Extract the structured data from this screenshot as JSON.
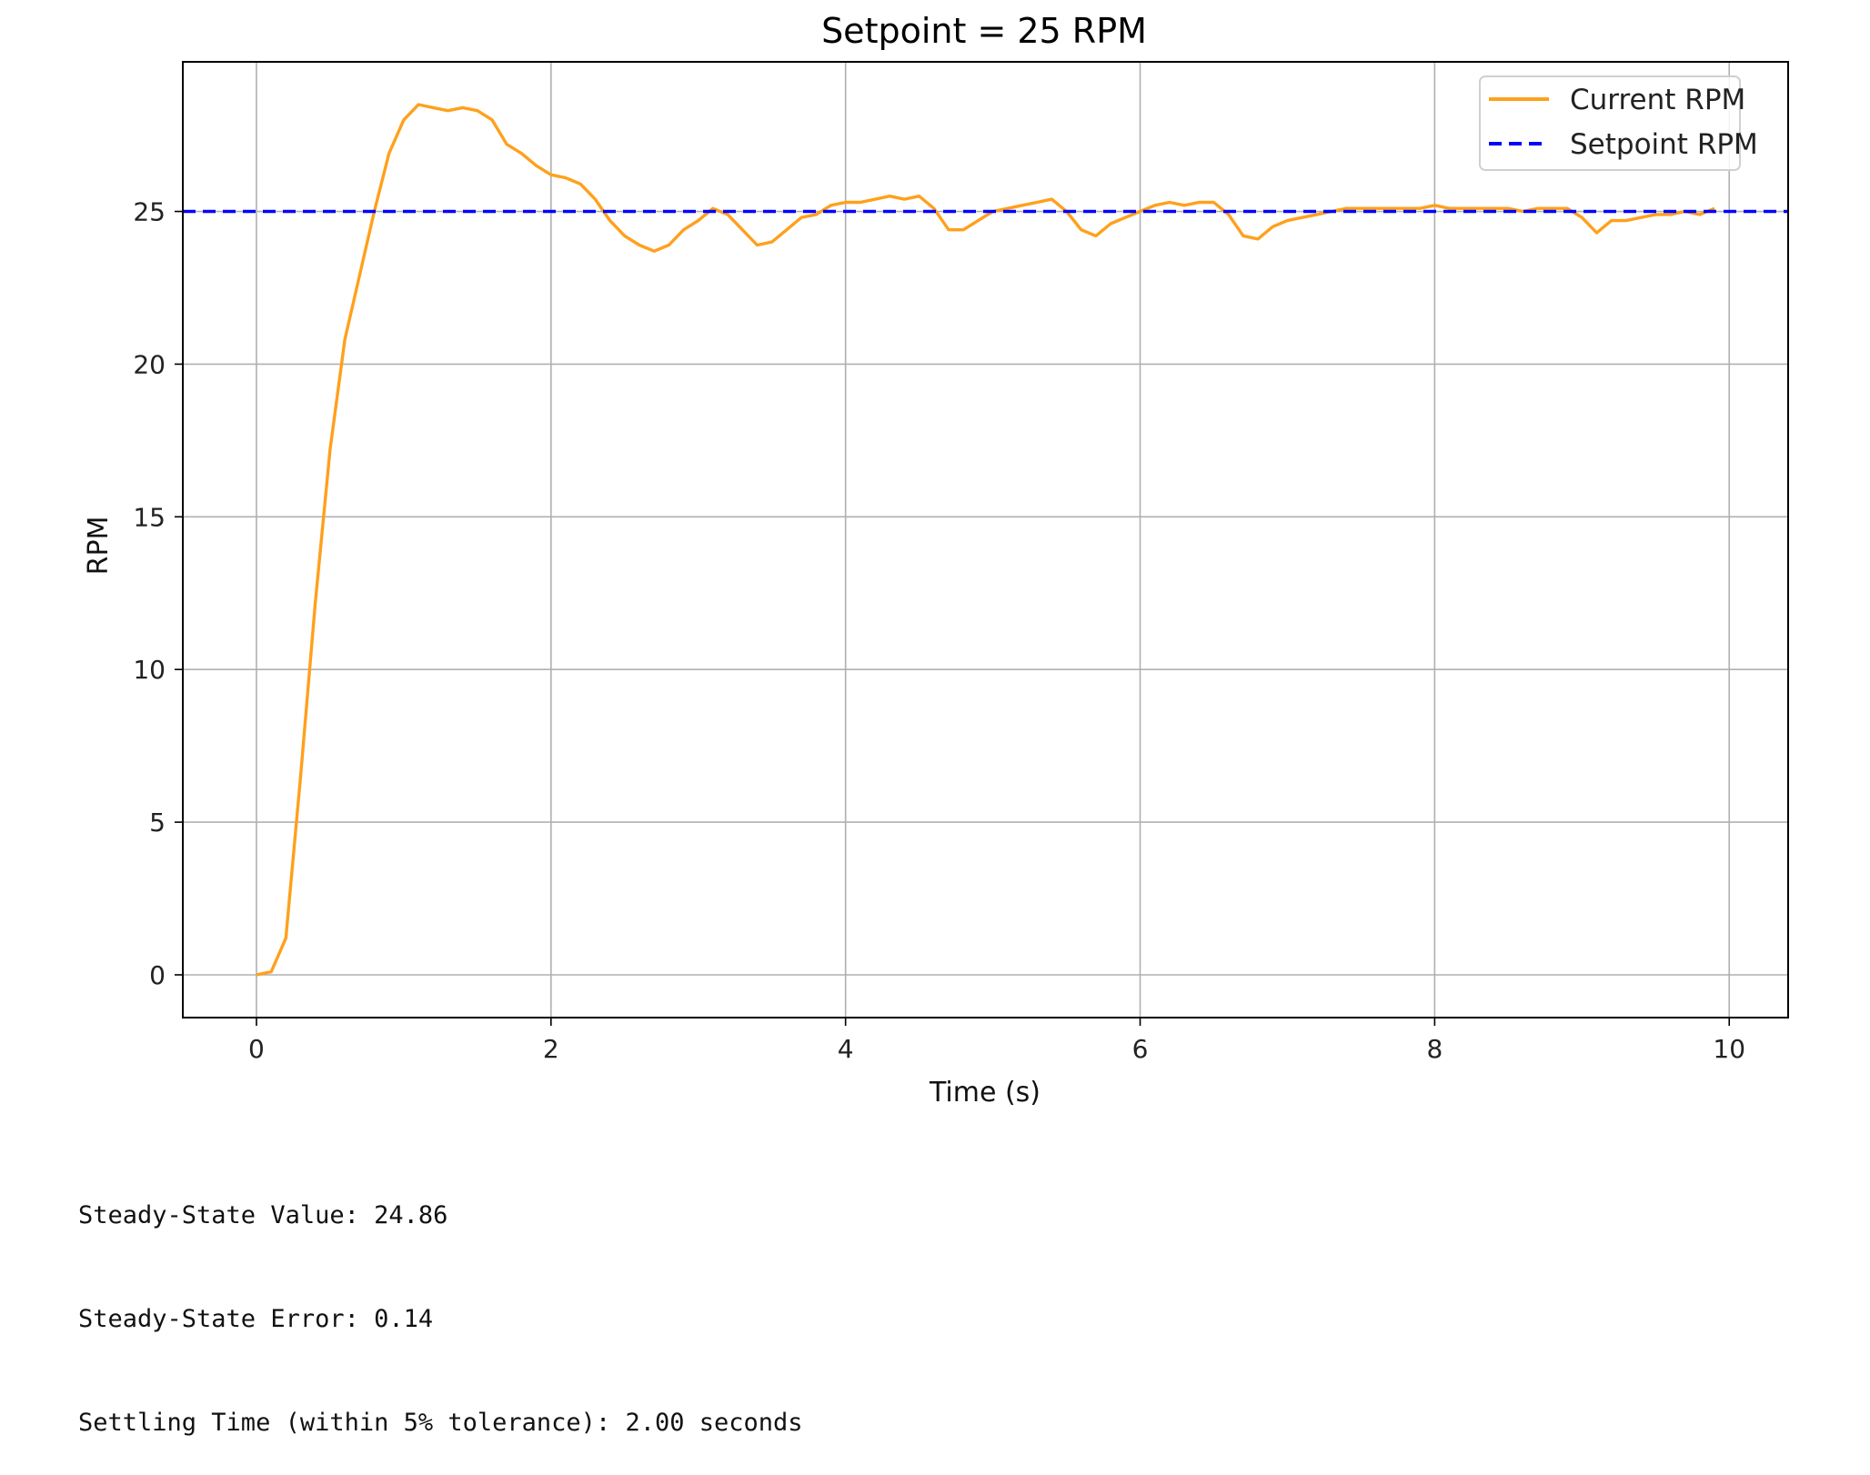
{
  "chart_data": {
    "type": "line",
    "title": "Setpoint = 25 RPM",
    "xlabel": "Time (s)",
    "ylabel": "RPM",
    "xlim": [
      -0.5,
      10.4
    ],
    "ylim": [
      -1.4,
      29.9
    ],
    "xticks": [
      0,
      2,
      4,
      6,
      8,
      10
    ],
    "yticks": [
      0,
      5,
      10,
      15,
      20,
      25
    ],
    "grid": true,
    "legend_position": "top-right",
    "series": [
      {
        "name": "Current RPM",
        "style": "solid",
        "color": "#FFA01C",
        "x": [
          0.0,
          0.1,
          0.2,
          0.3,
          0.4,
          0.5,
          0.6,
          0.7,
          0.8,
          0.9,
          1.0,
          1.1,
          1.2,
          1.3,
          1.4,
          1.5,
          1.6,
          1.7,
          1.8,
          1.9,
          2.0,
          2.1,
          2.2,
          2.3,
          2.4,
          2.5,
          2.6,
          2.7,
          2.8,
          2.9,
          3.0,
          3.1,
          3.2,
          3.3,
          3.4,
          3.5,
          3.6,
          3.7,
          3.8,
          3.9,
          4.0,
          4.1,
          4.2,
          4.3,
          4.4,
          4.5,
          4.6,
          4.7,
          4.8,
          4.9,
          5.0,
          5.1,
          5.2,
          5.3,
          5.4,
          5.5,
          5.6,
          5.7,
          5.8,
          5.9,
          6.0,
          6.1,
          6.2,
          6.3,
          6.4,
          6.5,
          6.6,
          6.7,
          6.8,
          6.9,
          7.0,
          7.1,
          7.2,
          7.3,
          7.4,
          7.5,
          7.6,
          7.7,
          7.8,
          7.9,
          8.0,
          8.1,
          8.2,
          8.3,
          8.4,
          8.5,
          8.6,
          8.7,
          8.8,
          8.9,
          9.0,
          9.1,
          9.2,
          9.3,
          9.4,
          9.5,
          9.6,
          9.7,
          9.8,
          9.9
        ],
        "y": [
          0.0,
          0.1,
          1.2,
          6.5,
          12.2,
          17.2,
          20.8,
          22.9,
          25.0,
          26.9,
          28.0,
          28.5,
          28.4,
          28.3,
          28.4,
          28.3,
          28.0,
          27.2,
          26.9,
          26.5,
          26.2,
          26.1,
          25.9,
          25.4,
          24.7,
          24.2,
          23.9,
          23.7,
          23.9,
          24.4,
          24.7,
          25.1,
          24.9,
          24.4,
          23.9,
          24.0,
          24.4,
          24.8,
          24.9,
          25.2,
          25.3,
          25.3,
          25.4,
          25.5,
          25.4,
          25.5,
          25.1,
          24.4,
          24.4,
          24.7,
          25.0,
          25.1,
          25.2,
          25.3,
          25.4,
          25.0,
          24.4,
          24.2,
          24.6,
          24.8,
          25.0,
          25.2,
          25.3,
          25.2,
          25.3,
          25.3,
          24.9,
          24.2,
          24.1,
          24.5,
          24.7,
          24.8,
          24.9,
          25.0,
          25.1,
          25.1,
          25.1,
          25.1,
          25.1,
          25.1,
          25.2,
          25.1,
          25.1,
          25.1,
          25.1,
          25.1,
          25.0,
          25.1,
          25.1,
          25.1,
          24.8,
          24.3,
          24.7,
          24.7,
          24.8,
          24.9,
          24.9,
          25.0,
          24.9,
          25.1
        ]
      },
      {
        "name": "Setpoint RPM",
        "style": "dashed",
        "color": "#0000FF",
        "x": [
          -0.5,
          10.4
        ],
        "y": [
          25,
          25
        ]
      }
    ]
  },
  "output_text": [
    "Steady-State Value: 24.86",
    "Steady-State Error: 0.14",
    "Settling Time (within 5% tolerance): 2.00 seconds"
  ]
}
